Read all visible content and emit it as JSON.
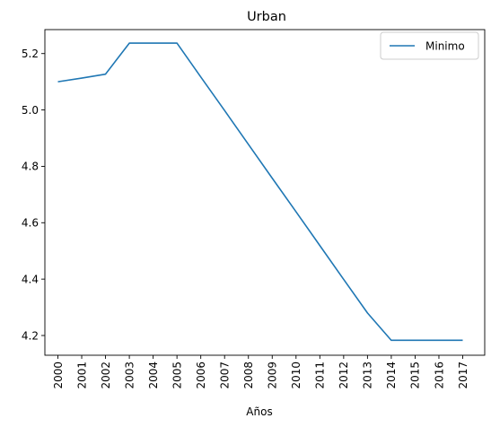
{
  "chart_data": {
    "type": "line",
    "title": "Urban",
    "xlabel": "Años",
    "ylabel": "",
    "categories": [
      "2000",
      "2001",
      "2002",
      "2003",
      "2004",
      "2005",
      "2006",
      "2007",
      "2008",
      "2009",
      "2010",
      "2011",
      "2012",
      "2013",
      "2014",
      "2015",
      "2016",
      "2017"
    ],
    "series": [
      {
        "name": "Minimo",
        "color": "#1f77b4",
        "values": [
          5.1,
          5.113,
          5.127,
          5.237,
          5.237,
          5.237,
          5.117,
          4.998,
          4.878,
          4.758,
          4.639,
          4.519,
          4.399,
          4.28,
          4.183,
          4.183,
          4.183,
          4.183
        ]
      }
    ],
    "ylim": [
      4.13,
      5.285
    ],
    "yticks": [
      4.2,
      4.4,
      4.6,
      4.8,
      5.0,
      5.2
    ],
    "ytick_labels": [
      "4.2",
      "4.4",
      "4.6",
      "4.8",
      "5.0",
      "5.2"
    ],
    "xtick_rotation": "vertical",
    "legend_position": "top-right",
    "grid": false
  }
}
